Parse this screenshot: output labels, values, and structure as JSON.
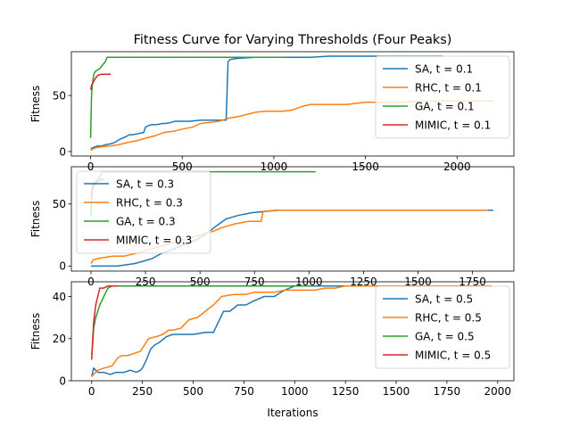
{
  "title": "Fitness Curve for Varying Thresholds (Four Peaks)",
  "colors": {
    "SA": "#1f77b4",
    "RHC": "#ff7f0e",
    "GA": "#2ca02c",
    "MIMIC": "#d62728"
  },
  "chart_data": [
    {
      "type": "line",
      "ylabel": "Fitness",
      "xlabel": "",
      "xlim": [
        -105,
        2310
      ],
      "ylim": [
        -4,
        89
      ],
      "xticks": [
        0,
        500,
        1000,
        1500,
        2000
      ],
      "yticks": [
        0,
        50
      ],
      "legend_position": "right",
      "series": [
        {
          "name": "SA, t = 0.1",
          "key": "SA",
          "x": [
            0,
            10,
            20,
            40,
            60,
            80,
            110,
            130,
            160,
            190,
            210,
            230,
            260,
            290,
            300,
            330,
            360,
            390,
            410,
            440,
            460,
            470,
            540,
            600,
            660,
            700,
            740,
            750,
            760,
            800,
            900,
            1000,
            1100,
            1200,
            1300,
            1400,
            1500,
            1600,
            1700,
            1800,
            1920
          ],
          "y": [
            3,
            3,
            4,
            5,
            5,
            6,
            7,
            8,
            11,
            13,
            15,
            15,
            16,
            17,
            22,
            24,
            24,
            25,
            25,
            26,
            27,
            27,
            27,
            28,
            28,
            28,
            28,
            80,
            82,
            83,
            84,
            84,
            84,
            84,
            85,
            85,
            85,
            85,
            85,
            85,
            85
          ]
        },
        {
          "name": "RHC, t = 0.1",
          "key": "RHC",
          "x": [
            0,
            20,
            50,
            100,
            150,
            200,
            260,
            300,
            350,
            400,
            450,
            500,
            560,
            600,
            650,
            700,
            760,
            800,
            850,
            900,
            950,
            1000,
            1050,
            1100,
            1150,
            1200,
            1300,
            1400,
            1500,
            1600,
            1700,
            1800,
            1900,
            2000,
            2100,
            2200
          ],
          "y": [
            1,
            3,
            4,
            5,
            6,
            8,
            10,
            12,
            14,
            17,
            18,
            20,
            22,
            25,
            26,
            27,
            30,
            31,
            33,
            35,
            36,
            36,
            36,
            37,
            40,
            42,
            42,
            42,
            44,
            44,
            44,
            45,
            45,
            45,
            45,
            45
          ]
        },
        {
          "name": "GA, t = 0.1",
          "key": "GA",
          "x": [
            0,
            2,
            5,
            10,
            15,
            20,
            30,
            40,
            50,
            60,
            70,
            80,
            90,
            100,
            150,
            300,
            600,
            1060
          ],
          "y": [
            12,
            30,
            50,
            60,
            66,
            70,
            72,
            73,
            74,
            76,
            78,
            80,
            84,
            84,
            84,
            84,
            84,
            84
          ]
        },
        {
          "name": "MIMIC, t = 0.1",
          "key": "MIMIC",
          "x": [
            0,
            5,
            15,
            25,
            40,
            60,
            80,
            100,
            110
          ],
          "y": [
            55,
            59,
            62,
            65,
            68,
            69,
            69,
            69,
            69
          ]
        }
      ]
    },
    {
      "type": "line",
      "ylabel": "Fitness",
      "xlabel": "",
      "xlim": [
        -90,
        1940
      ],
      "ylim": [
        -4,
        80
      ],
      "xticks": [
        0,
        250,
        500,
        750,
        1000,
        1250,
        1500,
        1750
      ],
      "yticks": [
        0,
        50
      ],
      "legend_position": "upper left",
      "series": [
        {
          "name": "SA, t = 0.3",
          "key": "SA",
          "x": [
            0,
            40,
            80,
            120,
            160,
            200,
            240,
            280,
            320,
            370,
            420,
            470,
            520,
            580,
            620,
            680,
            740,
            800,
            860,
            900,
            1000,
            1200,
            1400,
            1600,
            1800,
            1845
          ],
          "y": [
            0,
            0,
            0,
            0,
            1,
            2,
            4,
            6,
            10,
            13,
            17,
            20,
            25,
            33,
            38,
            41,
            43,
            44,
            45,
            45,
            45,
            45,
            45,
            45,
            45,
            45
          ]
        },
        {
          "name": "RHC, t = 0.3",
          "key": "RHC",
          "x": [
            0,
            10,
            30,
            60,
            100,
            150,
            200,
            260,
            320,
            380,
            440,
            500,
            560,
            600,
            660,
            720,
            780,
            790,
            850,
            1000,
            1200,
            1400,
            1600,
            1820
          ],
          "y": [
            2,
            5,
            6,
            7,
            8,
            8,
            10,
            13,
            16,
            19,
            22,
            25,
            28,
            31,
            34,
            36,
            36,
            44,
            45,
            45,
            45,
            45,
            45,
            45
          ]
        },
        {
          "name": "GA, t = 0.3",
          "key": "GA",
          "x": [
            0,
            3,
            6,
            10,
            20,
            30,
            40,
            50,
            100,
            500,
            1000,
            1030
          ],
          "y": [
            40,
            55,
            62,
            66,
            68,
            70,
            72,
            76,
            76,
            76,
            76,
            76
          ]
        },
        {
          "name": "MIMIC, t = 0.3",
          "key": "MIMIC",
          "x": [
            0,
            5,
            10,
            20,
            30,
            40,
            50,
            60
          ],
          "y": [
            55,
            60,
            64,
            66,
            68,
            69,
            70,
            70
          ]
        }
      ]
    },
    {
      "type": "line",
      "ylabel": "Fitness",
      "xlabel": "Iterations",
      "xlim": [
        -100,
        2080
      ],
      "ylim": [
        0,
        47
      ],
      "xticks": [
        0,
        250,
        500,
        750,
        1000,
        1250,
        1500,
        1750,
        2000
      ],
      "yticks": [
        0,
        20,
        40
      ],
      "legend_position": "right",
      "series": [
        {
          "name": "SA, t = 0.5",
          "key": "SA",
          "x": [
            0,
            10,
            20,
            30,
            60,
            90,
            120,
            140,
            160,
            190,
            220,
            240,
            250,
            270,
            290,
            310,
            330,
            370,
            400,
            420,
            440,
            500,
            560,
            600,
            620,
            650,
            680,
            720,
            760,
            800,
            850,
            900,
            950,
            1000,
            1100,
            1300,
            1500,
            1700
          ],
          "y": [
            2,
            6,
            5,
            4,
            4,
            3,
            4,
            4,
            4,
            5,
            4,
            5,
            6,
            10,
            15,
            17,
            18,
            21,
            22,
            22,
            22,
            22,
            23,
            23,
            27,
            33,
            33,
            36,
            36,
            38,
            40,
            40,
            43,
            45,
            45,
            45,
            45,
            45
          ]
        },
        {
          "name": "RHC, t = 0.5",
          "key": "RHC",
          "x": [
            0,
            10,
            30,
            60,
            100,
            130,
            150,
            180,
            210,
            240,
            280,
            320,
            350,
            380,
            400,
            440,
            480,
            520,
            560,
            600,
            640,
            700,
            760,
            800,
            850,
            900,
            950,
            1000,
            1050,
            1100,
            1150,
            1200,
            1250,
            1300,
            1400,
            1600,
            1800,
            1970
          ],
          "y": [
            2,
            3,
            5,
            6,
            7,
            11,
            12,
            12,
            13,
            14,
            20,
            21,
            22,
            24,
            24,
            25,
            29,
            30,
            33,
            36,
            40,
            41,
            41,
            42,
            42,
            42,
            43,
            43,
            43,
            43,
            44,
            44,
            45,
            45,
            45,
            45,
            45,
            45
          ]
        },
        {
          "name": "GA, t = 0.5",
          "key": "GA",
          "x": [
            0,
            5,
            10,
            20,
            30,
            40,
            50,
            60,
            70,
            80,
            100,
            150,
            500,
            1000,
            1090
          ],
          "y": [
            12,
            18,
            25,
            30,
            33,
            36,
            38,
            40,
            42,
            44,
            45,
            45,
            45,
            45,
            45
          ]
        },
        {
          "name": "MIMIC, t = 0.5",
          "key": "MIMIC",
          "x": [
            0,
            5,
            10,
            15,
            20,
            30,
            40,
            60,
            80,
            100,
            130
          ],
          "y": [
            10,
            20,
            28,
            32,
            36,
            40,
            44,
            44,
            45,
            45,
            45
          ]
        }
      ]
    }
  ]
}
